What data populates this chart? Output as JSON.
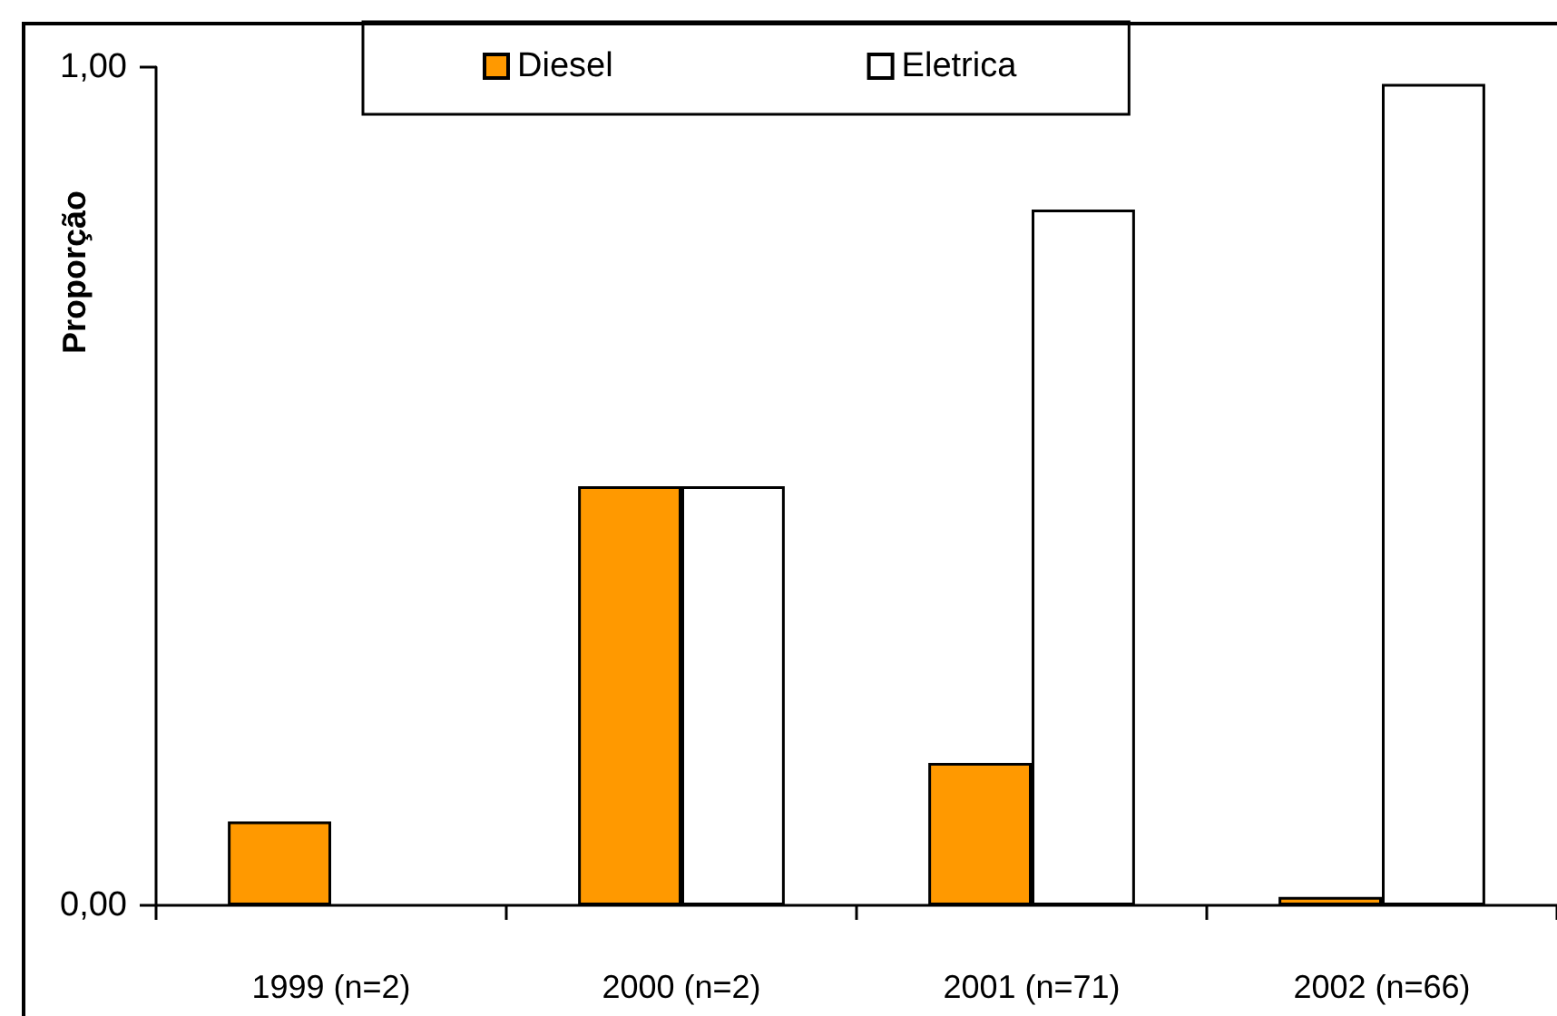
{
  "chart_data": {
    "type": "bar",
    "ylabel": "Proporção",
    "categories": [
      "1999 (n=2)",
      "2000 (n=2)",
      "2001 (n=71)",
      "2002 (n=66)"
    ],
    "series": [
      {
        "name": "Diesel",
        "color": "#ff9900",
        "values": [
          0.1,
          0.5,
          0.17,
          0.01
        ]
      },
      {
        "name": "Eletrica",
        "color": "#ffffff",
        "values": [
          null,
          0.5,
          0.83,
          0.98
        ]
      }
    ],
    "ylim": [
      0,
      1
    ],
    "yticks": [
      {
        "value": 0,
        "label": "0,00"
      },
      {
        "value": 1,
        "label": "1,00"
      }
    ],
    "grid": false,
    "legend": "top"
  }
}
